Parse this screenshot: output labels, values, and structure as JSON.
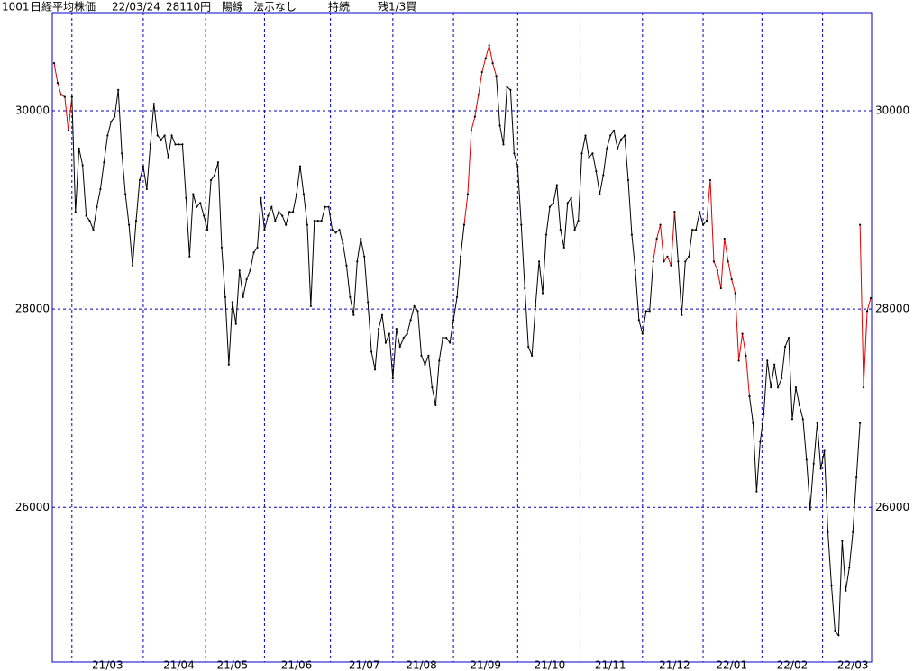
{
  "header": {
    "code": "1001",
    "name": "日経平均株価",
    "date": "22/03/24",
    "price": "28110円",
    "candle": "陽線",
    "signal": "法示なし",
    "status": "持続",
    "position": "残1/3買"
  },
  "chart_data": {
    "type": "line",
    "categories": [
      null,
      null,
      null,
      null,
      null,
      null,
      null,
      null,
      null,
      null,
      null,
      null,
      null,
      null,
      null,
      "21/03",
      null,
      null,
      null,
      null,
      null,
      null,
      null,
      null,
      null,
      null,
      null,
      null,
      null,
      null,
      null,
      null,
      null,
      null,
      null,
      "21/04",
      null,
      null,
      null,
      null,
      null,
      null,
      null,
      null,
      null,
      null,
      null,
      null,
      null,
      null,
      "21/05",
      null,
      null,
      null,
      null,
      null,
      null,
      null,
      null,
      null,
      null,
      null,
      null,
      null,
      null,
      null,
      null,
      null,
      "21/06",
      null,
      null,
      null,
      null,
      null,
      null,
      null,
      null,
      null,
      null,
      null,
      null,
      null,
      null,
      null,
      null,
      null,
      null,
      "21/07",
      null,
      null,
      null,
      null,
      null,
      null,
      null,
      null,
      null,
      null,
      null,
      null,
      null,
      null,
      null,
      "21/08",
      null,
      null,
      null,
      null,
      null,
      null,
      null,
      null,
      null,
      null,
      null,
      null,
      null,
      null,
      null,
      null,
      null,
      "21/09",
      null,
      null,
      null,
      null,
      null,
      null,
      null,
      null,
      null,
      null,
      null,
      null,
      null,
      null,
      null,
      null,
      null,
      "21/10",
      null,
      null,
      null,
      null,
      null,
      null,
      null,
      null,
      null,
      null,
      null,
      null,
      null,
      null,
      null,
      null,
      "21/11",
      null,
      null,
      null,
      null,
      null,
      null,
      null,
      null,
      null,
      null,
      null,
      null,
      null,
      null,
      null,
      null,
      null,
      "21/12",
      null,
      null,
      null,
      null,
      null,
      null,
      null,
      null,
      null,
      null,
      null,
      null,
      null,
      null,
      null,
      "22/01",
      null,
      null,
      null,
      null,
      null,
      null,
      null,
      null,
      null,
      null,
      null,
      null,
      null,
      null,
      null,
      null,
      "22/02",
      null,
      null,
      null,
      null,
      null,
      null,
      null,
      null,
      null,
      null,
      null,
      null,
      null,
      null,
      null,
      null,
      "22/03",
      null,
      null,
      null,
      null,
      null
    ],
    "series": [
      {
        "color": "#000000",
        "values": [
          null,
          null,
          null,
          null,
          null,
          30140,
          28980,
          29620,
          29450,
          28940,
          28890,
          28800,
          29030,
          29210,
          29480,
          29750,
          29890,
          29940,
          30210,
          29570,
          29160,
          28850,
          28440,
          28890,
          29300,
          29440,
          29210,
          29660,
          30070,
          29750,
          29710,
          29750,
          29530,
          29750,
          29660,
          29660,
          29660,
          29120,
          28530,
          29160,
          29030,
          29070,
          28940,
          28800,
          29300,
          29350,
          29480,
          28620,
          28120,
          27440,
          28070,
          27850,
          28390,
          28120,
          28300,
          28390,
          28570,
          28620,
          29120,
          28800,
          28940,
          29030,
          28890,
          28980,
          28940,
          28850,
          28980,
          28980,
          29160,
          29440,
          29160,
          28850,
          28030,
          28890,
          28890,
          28890,
          29030,
          29030,
          28800,
          28770,
          28800,
          28660,
          28440,
          28120,
          27940,
          28480,
          28710,
          28530,
          28070,
          27570,
          27390,
          27800,
          27940,
          27660,
          27750,
          27300,
          27800,
          27620,
          27710,
          27750,
          27890,
          28030,
          27980,
          27530,
          27440,
          27530,
          27210,
          27030,
          27480,
          27710,
          27710,
          27660,
          27890,
          28120,
          28530,
          28850,
          null,
          null,
          null,
          null,
          null,
          null,
          null,
          null,
          30350,
          29850,
          29660,
          30240,
          30210,
          29570,
          29440,
          28850,
          28210,
          27620,
          27530,
          28030,
          28480,
          28160,
          28750,
          29030,
          29070,
          29250,
          28800,
          28620,
          29070,
          29120,
          28800,
          28890,
          29570,
          29750,
          29530,
          29570,
          29390,
          29160,
          29350,
          29620,
          29750,
          29800,
          29620,
          29710,
          29750,
          29300,
          28750,
          28390,
          27890,
          27750,
          27980,
          27980,
          28480,
          null,
          null,
          null,
          null,
          null,
          28980,
          28480,
          27940,
          28480,
          28530,
          28800,
          28800,
          28980,
          28850,
          28890,
          null,
          null,
          null,
          null,
          null,
          null,
          null,
          null,
          null,
          null,
          null,
          27120,
          26850,
          26160,
          26660,
          26940,
          27480,
          27210,
          27440,
          27210,
          27300,
          27620,
          27710,
          26890,
          27210,
          27030,
          26890,
          26480,
          25980,
          26440,
          26850,
          26390,
          26570,
          25750,
          25210,
          24750,
          24710,
          25660,
          25160,
          25390,
          25750,
          26300,
          26850,
          null,
          null,
          null
        ]
      },
      {
        "color": "#e00000",
        "values": [
          30480,
          30280,
          30160,
          30140,
          29800,
          30140,
          null,
          null,
          null,
          null,
          null,
          null,
          null,
          null,
          null,
          null,
          null,
          null,
          null,
          null,
          null,
          null,
          null,
          null,
          null,
          null,
          null,
          null,
          null,
          null,
          null,
          null,
          null,
          null,
          null,
          null,
          null,
          null,
          null,
          null,
          null,
          null,
          null,
          null,
          null,
          null,
          null,
          null,
          null,
          null,
          null,
          null,
          null,
          null,
          null,
          null,
          null,
          null,
          null,
          null,
          null,
          null,
          null,
          null,
          null,
          null,
          null,
          null,
          null,
          null,
          null,
          null,
          null,
          null,
          null,
          null,
          null,
          null,
          null,
          null,
          null,
          null,
          null,
          null,
          null,
          null,
          null,
          null,
          null,
          null,
          null,
          null,
          null,
          null,
          null,
          null,
          null,
          null,
          null,
          null,
          null,
          null,
          null,
          null,
          null,
          null,
          null,
          null,
          null,
          null,
          null,
          null,
          null,
          null,
          null,
          28850,
          29160,
          29800,
          29940,
          30160,
          30390,
          30530,
          30660,
          30480,
          30350,
          null,
          null,
          null,
          null,
          null,
          null,
          null,
          null,
          null,
          null,
          null,
          null,
          null,
          null,
          null,
          null,
          null,
          null,
          null,
          null,
          null,
          null,
          null,
          null,
          null,
          null,
          null,
          null,
          null,
          null,
          null,
          null,
          null,
          null,
          null,
          null,
          null,
          null,
          null,
          null,
          null,
          null,
          null,
          28480,
          28710,
          28850,
          28480,
          28530,
          28440,
          28980,
          null,
          null,
          null,
          null,
          null,
          null,
          null,
          null,
          28890,
          29300,
          28480,
          28390,
          28210,
          28710,
          28480,
          28300,
          28160,
          27480,
          27750,
          27530,
          27120,
          null,
          null,
          null,
          null,
          null,
          null,
          null,
          null,
          null,
          null,
          null,
          null,
          null,
          null,
          null,
          null,
          null,
          null,
          null,
          null,
          null,
          null,
          null,
          null,
          null,
          null,
          null,
          null,
          null,
          null,
          28850,
          27210,
          27980,
          28110
        ]
      }
    ],
    "ylim": [
      24440,
      30990
    ],
    "yticks": [
      26000,
      28000,
      30000
    ],
    "grid": true,
    "marker_color": "#000000"
  }
}
